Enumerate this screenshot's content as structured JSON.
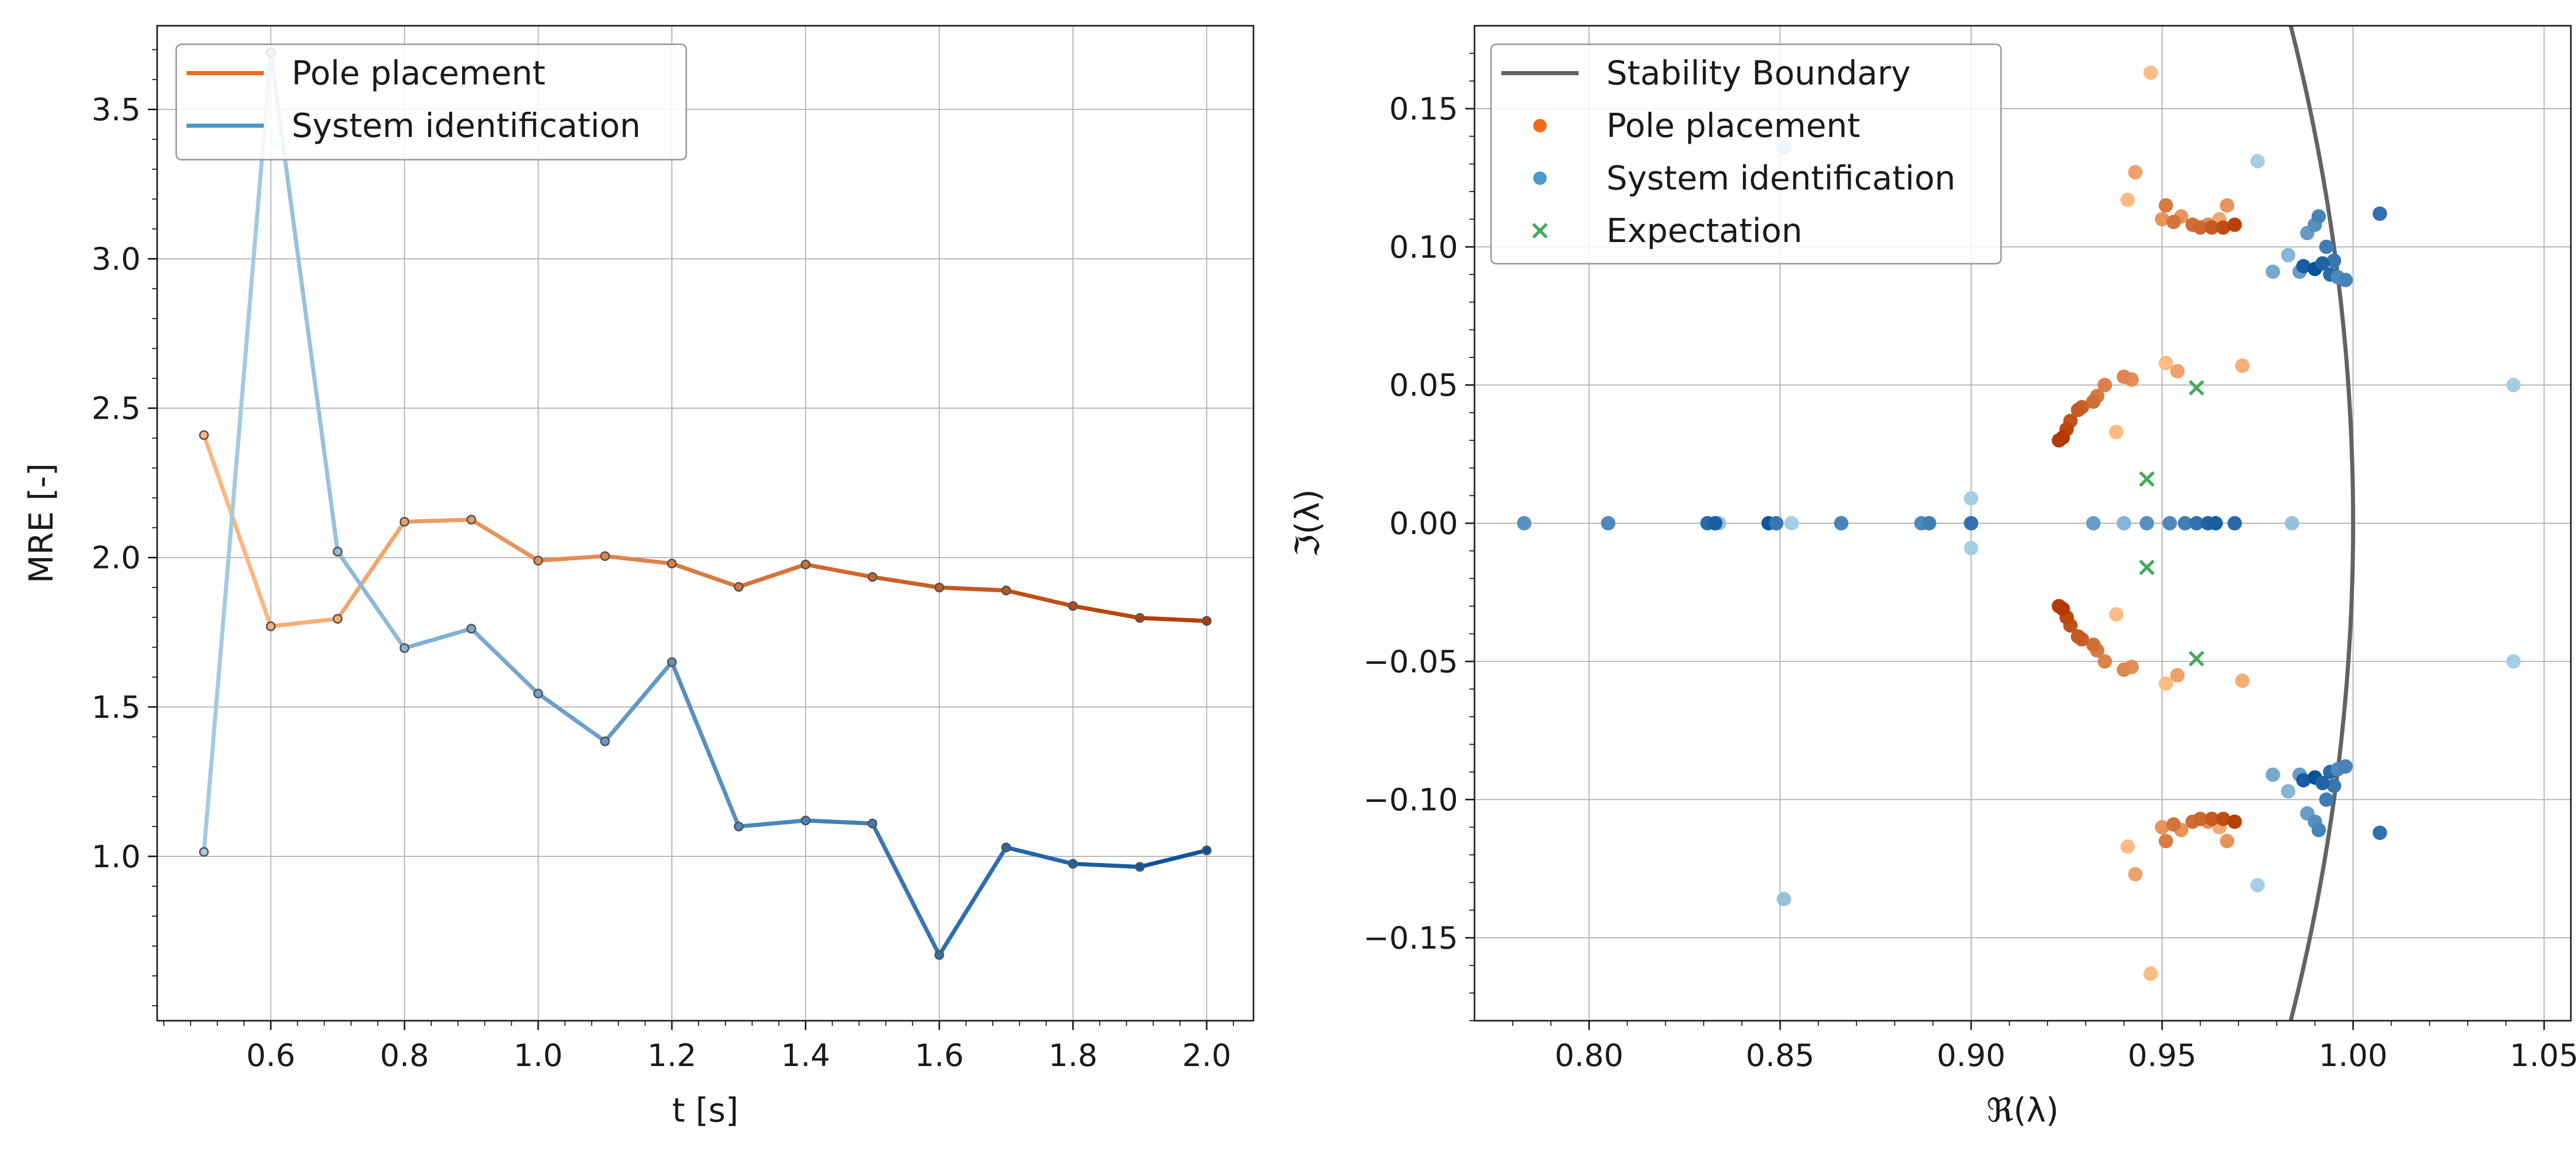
{
  "colors": {
    "pole_light": "#fdbb84",
    "pole_dark": "#b33a00",
    "sysid_light": "#a6cee3",
    "sysid_dark": "#08519c",
    "pole_legend": "#ef6a1a",
    "sysid_legend": "#4a98c9",
    "boundary": "#636363",
    "expectation": "#41ab5d",
    "grid": "#b0b0b0"
  },
  "chart_data": [
    {
      "type": "line",
      "xlabel": "t [s]",
      "ylabel": "MRE [-]",
      "xlim": [
        0.43,
        2.07
      ],
      "ylim": [
        0.45,
        3.78
      ],
      "xticks": [
        0.6,
        0.8,
        1.0,
        1.2,
        1.4,
        1.6,
        1.8,
        2.0
      ],
      "xtick_labels": [
        "0.6",
        "0.8",
        "1.0",
        "1.2",
        "1.4",
        "1.6",
        "1.8",
        "2.0"
      ],
      "yticks": [
        1.0,
        1.5,
        2.0,
        2.5,
        3.0,
        3.5
      ],
      "ytick_labels": [
        "1.0",
        "1.5",
        "2.0",
        "2.5",
        "3.0",
        "3.5"
      ],
      "grid": true,
      "legend": "top-left",
      "x": [
        0.5,
        0.6,
        0.7,
        0.8,
        0.9,
        1.0,
        1.1,
        1.2,
        1.3,
        1.4,
        1.5,
        1.6,
        1.7,
        1.8,
        1.9,
        2.0
      ],
      "series": [
        {
          "name": "Pole placement",
          "colorKey": "pole",
          "values": [
            2.41,
            1.77,
            1.795,
            2.12,
            2.127,
            1.99,
            2.005,
            1.98,
            1.902,
            1.977,
            1.935,
            1.9,
            1.89,
            1.838,
            1.798,
            1.788
          ]
        },
        {
          "name": "System identification",
          "colorKey": "sysid",
          "values": [
            1.015,
            3.69,
            2.02,
            1.697,
            1.762,
            1.545,
            1.385,
            1.65,
            1.1,
            1.12,
            1.11,
            0.67,
            1.03,
            0.975,
            0.965,
            1.02
          ]
        }
      ]
    },
    {
      "type": "scatter",
      "xlabel": "ℜ(λ)",
      "ylabel": "ℑ(λ)",
      "xlim": [
        0.77,
        1.057
      ],
      "ylim": [
        -0.18,
        0.18
      ],
      "xticks": [
        0.8,
        0.85,
        0.9,
        0.95,
        1.0,
        1.05
      ],
      "xtick_labels": [
        "0.80",
        "0.85",
        "0.90",
        "0.95",
        "1.00",
        "1.05"
      ],
      "yticks": [
        -0.15,
        -0.1,
        -0.05,
        0.0,
        0.05,
        0.1,
        0.15
      ],
      "ytick_labels": [
        "−0.15",
        "−0.10",
        "−0.05",
        "0.00",
        "0.05",
        "0.10",
        "0.15"
      ],
      "grid": true,
      "legend": "top-left",
      "legend_entries": [
        "Stability Boundary",
        "Pole placement",
        "System identification",
        "Expectation"
      ],
      "pole_placement": [
        [
          0.947,
          0.163,
          0
        ],
        [
          0.941,
          0.117,
          0
        ],
        [
          0.951,
          0.058,
          0
        ],
        [
          0.938,
          0.033,
          0
        ],
        [
          0.971,
          0.057,
          0.1
        ],
        [
          0.943,
          0.127,
          0.2
        ],
        [
          0.954,
          0.055,
          0.2
        ],
        [
          0.965,
          0.11,
          0.15
        ],
        [
          0.95,
          0.11,
          0.3
        ],
        [
          0.955,
          0.111,
          0.3
        ],
        [
          0.962,
          0.108,
          0.35
        ],
        [
          0.967,
          0.115,
          0.3
        ],
        [
          0.942,
          0.052,
          0.35
        ],
        [
          0.94,
          0.053,
          0.4
        ],
        [
          0.935,
          0.05,
          0.45
        ],
        [
          0.933,
          0.046,
          0.5
        ],
        [
          0.951,
          0.115,
          0.5
        ],
        [
          0.953,
          0.109,
          0.55
        ],
        [
          0.958,
          0.108,
          0.6
        ],
        [
          0.96,
          0.107,
          0.65
        ],
        [
          0.932,
          0.044,
          0.6
        ],
        [
          0.929,
          0.042,
          0.7
        ],
        [
          0.928,
          0.041,
          0.75
        ],
        [
          0.963,
          0.107,
          0.75
        ],
        [
          0.966,
          0.107,
          0.85
        ],
        [
          0.969,
          0.108,
          0.95
        ],
        [
          0.926,
          0.037,
          0.8
        ],
        [
          0.925,
          0.034,
          0.9
        ],
        [
          0.924,
          0.031,
          1.0
        ],
        [
          0.923,
          0.03,
          1.0
        ]
      ],
      "system_identification": [
        [
          0.975,
          0.131,
          0
        ],
        [
          0.851,
          0.136,
          0.1
        ],
        [
          1.042,
          0.05,
          0
        ],
        [
          0.9,
          0.009,
          0
        ],
        [
          0.853,
          0.0,
          0
        ],
        [
          0.834,
          0.0,
          0.1
        ],
        [
          0.94,
          0.0,
          0.2
        ],
        [
          0.984,
          0.0,
          0.1
        ],
        [
          0.979,
          0.091,
          0.3
        ],
        [
          0.983,
          0.097,
          0.2
        ],
        [
          0.986,
          0.091,
          0.4
        ],
        [
          0.988,
          0.105,
          0.4
        ],
        [
          0.99,
          0.108,
          0.5
        ],
        [
          0.991,
          0.111,
          0.6
        ],
        [
          0.993,
          0.1,
          0.65
        ],
        [
          0.995,
          0.095,
          0.7
        ],
        [
          0.994,
          0.09,
          0.8
        ],
        [
          0.996,
          0.089,
          0.55
        ],
        [
          0.998,
          0.088,
          0.6
        ],
        [
          1.007,
          0.112,
          0.75
        ],
        [
          0.987,
          0.093,
          0.9
        ],
        [
          0.99,
          0.092,
          1.0
        ],
        [
          0.992,
          0.094,
          0.85
        ],
        [
          0.783,
          0.0,
          0.5
        ],
        [
          0.805,
          0.0,
          0.55
        ],
        [
          0.831,
          0.0,
          0.8
        ],
        [
          0.833,
          0.0,
          0.9
        ],
        [
          0.847,
          0.0,
          0.95
        ],
        [
          0.849,
          0.0,
          0.7
        ],
        [
          0.866,
          0.0,
          0.6
        ],
        [
          0.887,
          0.0,
          0.55
        ],
        [
          0.889,
          0.0,
          0.65
        ],
        [
          0.9,
          0.0,
          0.75
        ],
        [
          0.932,
          0.0,
          0.4
        ],
        [
          0.946,
          0.0,
          0.5
        ],
        [
          0.952,
          0.0,
          0.55
        ],
        [
          0.956,
          0.0,
          0.65
        ],
        [
          0.959,
          0.0,
          0.75
        ],
        [
          0.962,
          0.0,
          0.85
        ],
        [
          0.964,
          0.0,
          0.9
        ],
        [
          0.969,
          0.0,
          0.8
        ]
      ],
      "expectation": [
        [
          0.959,
          0.049
        ],
        [
          0.946,
          0.016
        ],
        [
          0.946,
          -0.016
        ],
        [
          0.959,
          -0.049
        ]
      ],
      "stability_boundary": "unit circle |λ| = 1"
    }
  ]
}
